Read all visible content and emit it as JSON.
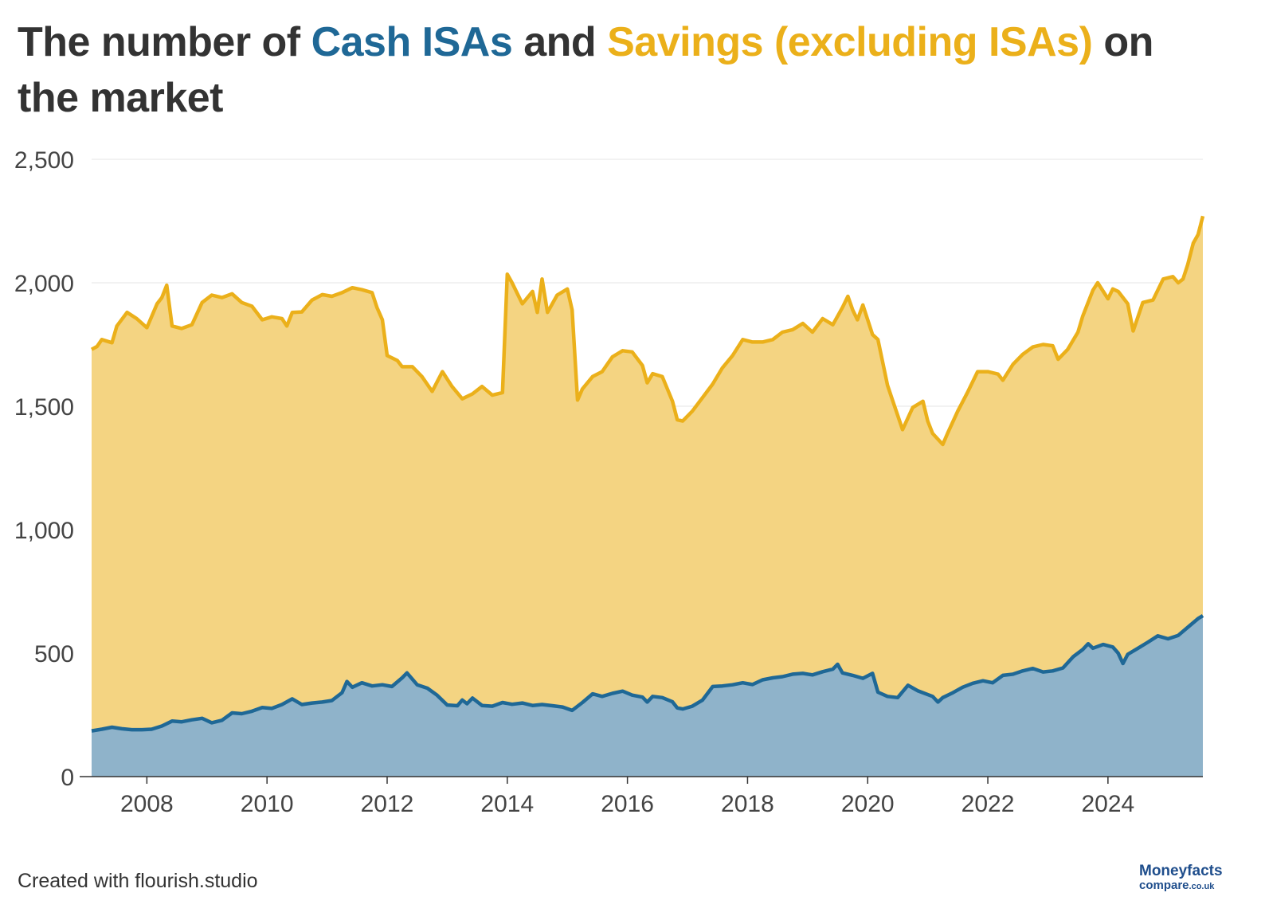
{
  "title": {
    "prefix": "The number of ",
    "series1": "Cash ISAs",
    "middle": " and ",
    "series2": "Savings (excluding ISAs)",
    "suffix": " on the market"
  },
  "footer": {
    "credit": "Created with flourish.studio"
  },
  "logo": {
    "top": "Moneyfacts",
    "bottom": "compare",
    "tld": ".co.uk"
  },
  "colors": {
    "cash_line": "#1f6896",
    "cash_fill": "#8fb3ca",
    "savings_line": "#ebb01a",
    "savings_fill": "#f4d482",
    "grid": "#e6e6e6",
    "axis": "#333333"
  },
  "chart_data": {
    "type": "area",
    "stacked": true,
    "title": "The number of Cash ISAs and Savings (excluding ISAs) on the market",
    "xlabel": "",
    "ylabel": "",
    "ylim": [
      0,
      2500
    ],
    "xlim": [
      2007.08,
      2025.58
    ],
    "yticks": [
      0,
      500,
      1000,
      1500,
      2000,
      2500
    ],
    "ytick_labels": [
      "0",
      "500",
      "1,000",
      "1,500",
      "2,000",
      "2,500"
    ],
    "xticks": [
      2008,
      2010,
      2012,
      2014,
      2016,
      2018,
      2020,
      2022,
      2024
    ],
    "xtick_labels": [
      "2008",
      "2010",
      "2012",
      "2014",
      "2016",
      "2018",
      "2020",
      "2022",
      "2024"
    ],
    "grid": true,
    "legend": "in title",
    "series": [
      {
        "name": "Cash ISAs",
        "points": [
          [
            2007.08,
            185
          ],
          [
            2007.25,
            192
          ],
          [
            2007.42,
            200
          ],
          [
            2007.58,
            194
          ],
          [
            2007.75,
            190
          ],
          [
            2007.92,
            190
          ],
          [
            2008.08,
            192
          ],
          [
            2008.25,
            205
          ],
          [
            2008.42,
            225
          ],
          [
            2008.58,
            222
          ],
          [
            2008.75,
            230
          ],
          [
            2008.92,
            236
          ],
          [
            2009.08,
            218
          ],
          [
            2009.25,
            228
          ],
          [
            2009.42,
            258
          ],
          [
            2009.58,
            255
          ],
          [
            2009.75,
            265
          ],
          [
            2009.92,
            280
          ],
          [
            2010.08,
            276
          ],
          [
            2010.25,
            292
          ],
          [
            2010.42,
            315
          ],
          [
            2010.58,
            292
          ],
          [
            2010.75,
            298
          ],
          [
            2010.92,
            302
          ],
          [
            2011.08,
            308
          ],
          [
            2011.25,
            340
          ],
          [
            2011.33,
            385
          ],
          [
            2011.42,
            362
          ],
          [
            2011.58,
            380
          ],
          [
            2011.75,
            367
          ],
          [
            2011.92,
            372
          ],
          [
            2012.08,
            365
          ],
          [
            2012.25,
            400
          ],
          [
            2012.33,
            420
          ],
          [
            2012.5,
            372
          ],
          [
            2012.67,
            358
          ],
          [
            2012.83,
            330
          ],
          [
            2013.0,
            290
          ],
          [
            2013.17,
            287
          ],
          [
            2013.25,
            310
          ],
          [
            2013.33,
            295
          ],
          [
            2013.42,
            318
          ],
          [
            2013.58,
            288
          ],
          [
            2013.75,
            285
          ],
          [
            2013.92,
            300
          ],
          [
            2014.08,
            293
          ],
          [
            2014.25,
            298
          ],
          [
            2014.42,
            288
          ],
          [
            2014.58,
            292
          ],
          [
            2014.75,
            287
          ],
          [
            2014.92,
            282
          ],
          [
            2015.08,
            268
          ],
          [
            2015.25,
            300
          ],
          [
            2015.42,
            335
          ],
          [
            2015.58,
            325
          ],
          [
            2015.75,
            337
          ],
          [
            2015.92,
            346
          ],
          [
            2016.08,
            330
          ],
          [
            2016.25,
            322
          ],
          [
            2016.33,
            302
          ],
          [
            2016.42,
            325
          ],
          [
            2016.58,
            320
          ],
          [
            2016.75,
            303
          ],
          [
            2016.83,
            278
          ],
          [
            2016.92,
            274
          ],
          [
            2017.08,
            285
          ],
          [
            2017.25,
            310
          ],
          [
            2017.42,
            365
          ],
          [
            2017.58,
            367
          ],
          [
            2017.75,
            372
          ],
          [
            2017.92,
            380
          ],
          [
            2018.08,
            373
          ],
          [
            2018.25,
            392
          ],
          [
            2018.42,
            400
          ],
          [
            2018.58,
            405
          ],
          [
            2018.75,
            415
          ],
          [
            2018.92,
            418
          ],
          [
            2019.08,
            412
          ],
          [
            2019.25,
            425
          ],
          [
            2019.42,
            435
          ],
          [
            2019.5,
            455
          ],
          [
            2019.58,
            420
          ],
          [
            2019.75,
            410
          ],
          [
            2019.92,
            398
          ],
          [
            2020.08,
            418
          ],
          [
            2020.17,
            342
          ],
          [
            2020.33,
            325
          ],
          [
            2020.5,
            320
          ],
          [
            2020.67,
            370
          ],
          [
            2020.83,
            348
          ],
          [
            2021.08,
            325
          ],
          [
            2021.17,
            302
          ],
          [
            2021.25,
            320
          ],
          [
            2021.42,
            340
          ],
          [
            2021.58,
            362
          ],
          [
            2021.75,
            378
          ],
          [
            2021.92,
            388
          ],
          [
            2022.08,
            380
          ],
          [
            2022.25,
            410
          ],
          [
            2022.42,
            415
          ],
          [
            2022.58,
            428
          ],
          [
            2022.75,
            438
          ],
          [
            2022.92,
            424
          ],
          [
            2023.08,
            428
          ],
          [
            2023.25,
            440
          ],
          [
            2023.42,
            485
          ],
          [
            2023.58,
            515
          ],
          [
            2023.67,
            538
          ],
          [
            2023.75,
            520
          ],
          [
            2023.92,
            535
          ],
          [
            2024.08,
            525
          ],
          [
            2024.17,
            500
          ],
          [
            2024.25,
            458
          ],
          [
            2024.33,
            495
          ],
          [
            2024.5,
            520
          ],
          [
            2024.67,
            545
          ],
          [
            2024.83,
            570
          ],
          [
            2025.0,
            558
          ],
          [
            2025.17,
            572
          ],
          [
            2025.33,
            605
          ],
          [
            2025.5,
            640
          ],
          [
            2025.58,
            652
          ]
        ]
      },
      {
        "name": "Savings (excluding ISAs)",
        "points": [
          [
            2007.08,
            1730
          ],
          [
            2007.17,
            1742
          ],
          [
            2007.25,
            1770
          ],
          [
            2007.42,
            1757
          ],
          [
            2007.5,
            1825
          ],
          [
            2007.67,
            1880
          ],
          [
            2007.83,
            1855
          ],
          [
            2008.0,
            1818
          ],
          [
            2008.17,
            1915
          ],
          [
            2008.25,
            1940
          ],
          [
            2008.33,
            1990
          ],
          [
            2008.42,
            1825
          ],
          [
            2008.58,
            1815
          ],
          [
            2008.75,
            1830
          ],
          [
            2008.92,
            1920
          ],
          [
            2009.08,
            1950
          ],
          [
            2009.25,
            1940
          ],
          [
            2009.42,
            1955
          ],
          [
            2009.58,
            1920
          ],
          [
            2009.75,
            1905
          ],
          [
            2009.92,
            1850
          ],
          [
            2010.08,
            1862
          ],
          [
            2010.25,
            1855
          ],
          [
            2010.33,
            1825
          ],
          [
            2010.42,
            1880
          ],
          [
            2010.58,
            1882
          ],
          [
            2010.75,
            1930
          ],
          [
            2010.92,
            1952
          ],
          [
            2011.08,
            1945
          ],
          [
            2011.25,
            1960
          ],
          [
            2011.42,
            1980
          ],
          [
            2011.58,
            1972
          ],
          [
            2011.75,
            1960
          ],
          [
            2011.83,
            1900
          ],
          [
            2011.92,
            1850
          ],
          [
            2012.0,
            1705
          ],
          [
            2012.17,
            1685
          ],
          [
            2012.25,
            1660
          ],
          [
            2012.42,
            1660
          ],
          [
            2012.58,
            1620
          ],
          [
            2012.75,
            1560
          ],
          [
            2012.92,
            1640
          ],
          [
            2013.08,
            1580
          ],
          [
            2013.25,
            1530
          ],
          [
            2013.42,
            1550
          ],
          [
            2013.58,
            1580
          ],
          [
            2013.75,
            1545
          ],
          [
            2013.92,
            1555
          ],
          [
            2014.0,
            2035
          ],
          [
            2014.08,
            2000
          ],
          [
            2014.25,
            1915
          ],
          [
            2014.42,
            1965
          ],
          [
            2014.5,
            1880
          ],
          [
            2014.58,
            2015
          ],
          [
            2014.67,
            1880
          ],
          [
            2014.83,
            1950
          ],
          [
            2015.0,
            1975
          ],
          [
            2015.08,
            1890
          ],
          [
            2015.17,
            1525
          ],
          [
            2015.25,
            1570
          ],
          [
            2015.42,
            1620
          ],
          [
            2015.58,
            1640
          ],
          [
            2015.75,
            1700
          ],
          [
            2015.92,
            1725
          ],
          [
            2016.08,
            1720
          ],
          [
            2016.25,
            1665
          ],
          [
            2016.33,
            1595
          ],
          [
            2016.42,
            1632
          ],
          [
            2016.58,
            1620
          ],
          [
            2016.75,
            1520
          ],
          [
            2016.83,
            1445
          ],
          [
            2016.92,
            1440
          ],
          [
            2017.08,
            1480
          ],
          [
            2017.25,
            1535
          ],
          [
            2017.42,
            1590
          ],
          [
            2017.58,
            1655
          ],
          [
            2017.75,
            1705
          ],
          [
            2017.92,
            1770
          ],
          [
            2018.08,
            1760
          ],
          [
            2018.25,
            1760
          ],
          [
            2018.42,
            1770
          ],
          [
            2018.58,
            1800
          ],
          [
            2018.75,
            1810
          ],
          [
            2018.92,
            1835
          ],
          [
            2019.08,
            1800
          ],
          [
            2019.25,
            1855
          ],
          [
            2019.42,
            1830
          ],
          [
            2019.58,
            1900
          ],
          [
            2019.67,
            1945
          ],
          [
            2019.75,
            1890
          ],
          [
            2019.83,
            1850
          ],
          [
            2019.92,
            1910
          ],
          [
            2020.08,
            1790
          ],
          [
            2020.17,
            1770
          ],
          [
            2020.33,
            1585
          ],
          [
            2020.42,
            1520
          ],
          [
            2020.58,
            1405
          ],
          [
            2020.75,
            1495
          ],
          [
            2020.92,
            1520
          ],
          [
            2021.0,
            1440
          ],
          [
            2021.08,
            1390
          ],
          [
            2021.25,
            1345
          ],
          [
            2021.33,
            1390
          ],
          [
            2021.5,
            1480
          ],
          [
            2021.67,
            1560
          ],
          [
            2021.83,
            1640
          ],
          [
            2022.0,
            1640
          ],
          [
            2022.17,
            1630
          ],
          [
            2022.25,
            1605
          ],
          [
            2022.42,
            1670
          ],
          [
            2022.58,
            1710
          ],
          [
            2022.75,
            1740
          ],
          [
            2022.92,
            1750
          ],
          [
            2023.08,
            1745
          ],
          [
            2023.17,
            1690
          ],
          [
            2023.33,
            1730
          ],
          [
            2023.5,
            1800
          ],
          [
            2023.58,
            1865
          ],
          [
            2023.75,
            1970
          ],
          [
            2023.83,
            2000
          ],
          [
            2024.0,
            1935
          ],
          [
            2024.08,
            1975
          ],
          [
            2024.17,
            1965
          ],
          [
            2024.33,
            1915
          ],
          [
            2024.42,
            1805
          ],
          [
            2024.58,
            1920
          ],
          [
            2024.75,
            1930
          ],
          [
            2024.92,
            2015
          ],
          [
            2025.08,
            2025
          ],
          [
            2025.17,
            2000
          ],
          [
            2025.25,
            2015
          ],
          [
            2025.33,
            2075
          ],
          [
            2025.42,
            2160
          ],
          [
            2025.5,
            2195
          ],
          [
            2025.58,
            2270
          ]
        ]
      }
    ]
  }
}
